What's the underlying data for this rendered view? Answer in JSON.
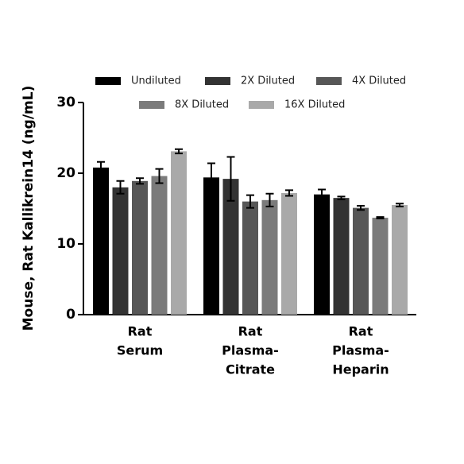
{
  "chart_data": {
    "type": "bar",
    "y_label": "Mouse, Rat Kallikrein14 (ng/mL)",
    "categories": [
      [
        "Rat",
        "Serum"
      ],
      [
        "Rat",
        "Plasma-",
        "Citrate"
      ],
      [
        "Rat",
        "Plasma-",
        "Heparin"
      ]
    ],
    "series": [
      {
        "name": "Undiluted",
        "color": "#000000",
        "values": [
          20.8,
          19.4,
          17.0
        ],
        "errors": [
          0.8,
          2.0,
          0.7
        ]
      },
      {
        "name": "2X Diluted",
        "color": "#333333",
        "values": [
          18.0,
          19.2,
          16.5
        ],
        "errors": [
          0.9,
          3.1,
          0.2
        ]
      },
      {
        "name": "4X Diluted",
        "color": "#575757",
        "values": [
          18.9,
          16.0,
          15.1
        ],
        "errors": [
          0.4,
          0.9,
          0.3
        ]
      },
      {
        "name": "8X Diluted",
        "color": "#7b7b7b",
        "values": [
          19.6,
          16.2,
          13.7
        ],
        "errors": [
          1.0,
          0.9,
          0.1
        ]
      },
      {
        "name": "16X Diluted",
        "color": "#a9a9a9",
        "values": [
          23.1,
          17.2,
          15.5
        ],
        "errors": [
          0.3,
          0.4,
          0.2
        ]
      }
    ],
    "ylim": [
      0,
      30
    ],
    "yticks": [
      0,
      10,
      20,
      30
    ]
  }
}
